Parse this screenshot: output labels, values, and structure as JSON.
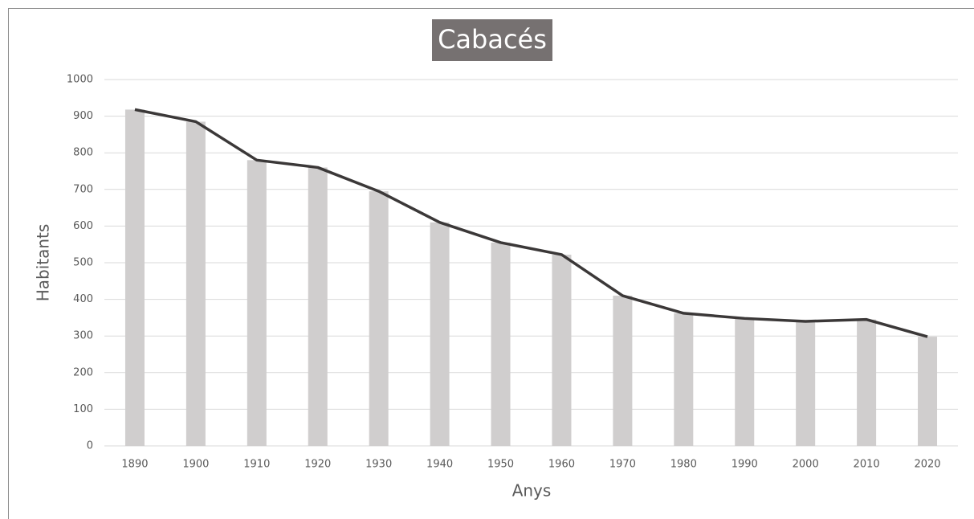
{
  "chart_data": {
    "type": "combo",
    "title": "Cabacés",
    "x_label": "Anys",
    "y_label": "Habitants",
    "categories": [
      "1890",
      "1900",
      "1910",
      "1920",
      "1930",
      "1940",
      "1950",
      "1960",
      "1970",
      "1980",
      "1990",
      "2000",
      "2010",
      "2020"
    ],
    "values": [
      918,
      885,
      780,
      760,
      695,
      610,
      555,
      522,
      410,
      362,
      348,
      340,
      345,
      298
    ],
    "bar_color": "#d0cece",
    "line_color": "#3b3838",
    "ylim": [
      0,
      1000
    ],
    "yticks": [
      0,
      100,
      200,
      300,
      400,
      500,
      600,
      700,
      800,
      900,
      1000
    ],
    "grid": true
  }
}
